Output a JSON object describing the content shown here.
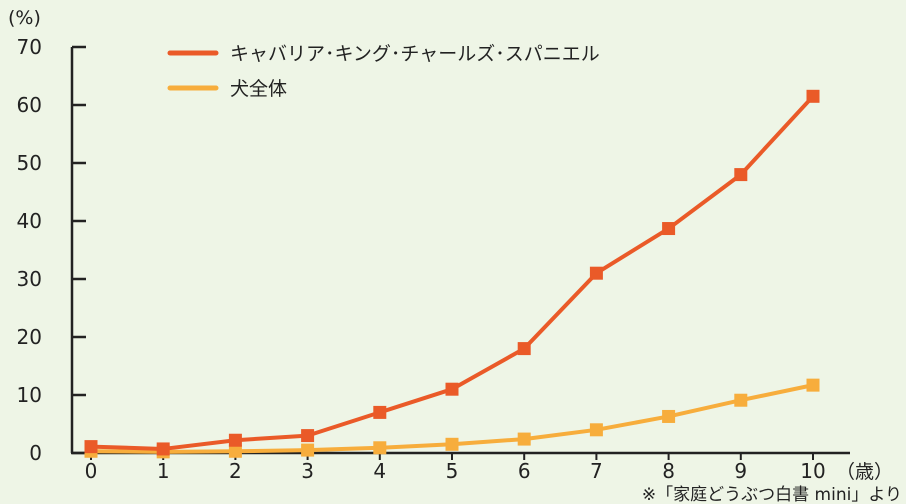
{
  "chart_data": {
    "type": "line",
    "x": [
      0,
      1,
      2,
      3,
      4,
      5,
      6,
      7,
      8,
      9,
      10
    ],
    "series": [
      {
        "name": "キャバリア･キング･チャールズ･スパニエル",
        "color": "#ea5a28",
        "values": [
          1.1,
          0.7,
          2.2,
          3.0,
          7.0,
          11.0,
          18.0,
          31.0,
          38.7,
          48.0,
          61.5
        ]
      },
      {
        "name": "犬全体",
        "color": "#f7ad3c",
        "values": [
          0.3,
          0.2,
          0.3,
          0.5,
          0.9,
          1.5,
          2.4,
          4.0,
          6.3,
          9.1,
          11.7
        ]
      }
    ],
    "ylim": [
      0,
      70
    ],
    "yticks": [
      0,
      10,
      20,
      30,
      40,
      50,
      60,
      70
    ],
    "ylabel": "(%)",
    "xlabel": "（歳）",
    "source_note": "※「家庭どうぶつ白書 mini」より",
    "grid": false,
    "legend_position": "top-left"
  }
}
